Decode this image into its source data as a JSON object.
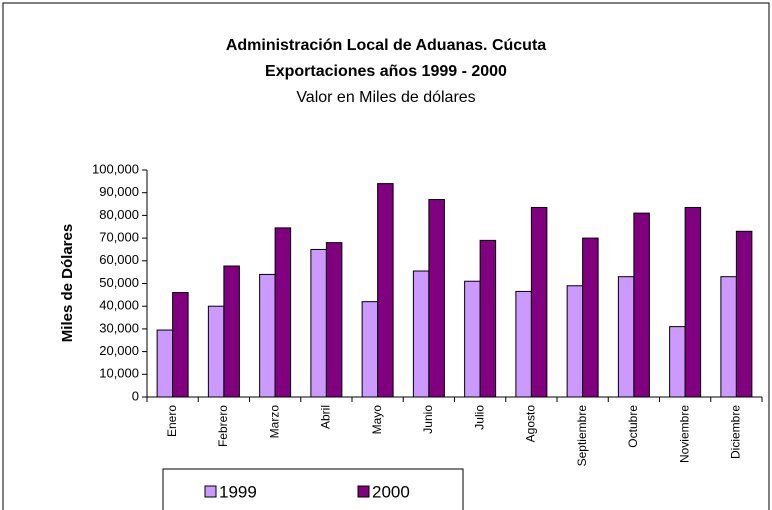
{
  "chart_data": {
    "type": "bar",
    "title": [
      "Administración Local de Aduanas. Cúcuta",
      "Exportaciones años 1999 - 2000"
    ],
    "subtitle": "Valor en Miles de dólares",
    "y_label": "Miles de Dólares",
    "categories": [
      "Enero",
      "Febrero",
      "Marzo",
      "Abril",
      "Mayo",
      "Junio",
      "Julio",
      "Agosto",
      "Septiembre",
      "Octubre",
      "Noviembre",
      "Diciembre"
    ],
    "series": [
      {
        "name": "1999",
        "color": "#cc99ff",
        "values": [
          29500,
          40000,
          54000,
          65000,
          42000,
          55500,
          51000,
          46500,
          49000,
          53000,
          31000,
          53000
        ]
      },
      {
        "name": "2000",
        "color": "#800080",
        "values": [
          46000,
          57700,
          74500,
          68000,
          94000,
          87000,
          69000,
          83500,
          70000,
          81000,
          83500,
          73000
        ]
      }
    ],
    "ylim": [
      0,
      100000
    ],
    "yticks": [
      0,
      {
        "value": 10000,
        "label": "10,000"
      },
      {
        "value": 20000,
        "label": "20,000"
      },
      {
        "value": 30000,
        "label": "30,000"
      },
      {
        "value": 40000,
        "label": "40,000"
      },
      {
        "value": 50000,
        "label": "50,000"
      },
      {
        "value": 60000,
        "label": "60,000"
      },
      {
        "value": 70000,
        "label": "70,000"
      },
      {
        "value": 80000,
        "label": "80,000"
      },
      {
        "value": 90000,
        "label": "90,000"
      },
      {
        "value": 100000,
        "label": "100,000"
      }
    ],
    "legend": "bottom"
  }
}
